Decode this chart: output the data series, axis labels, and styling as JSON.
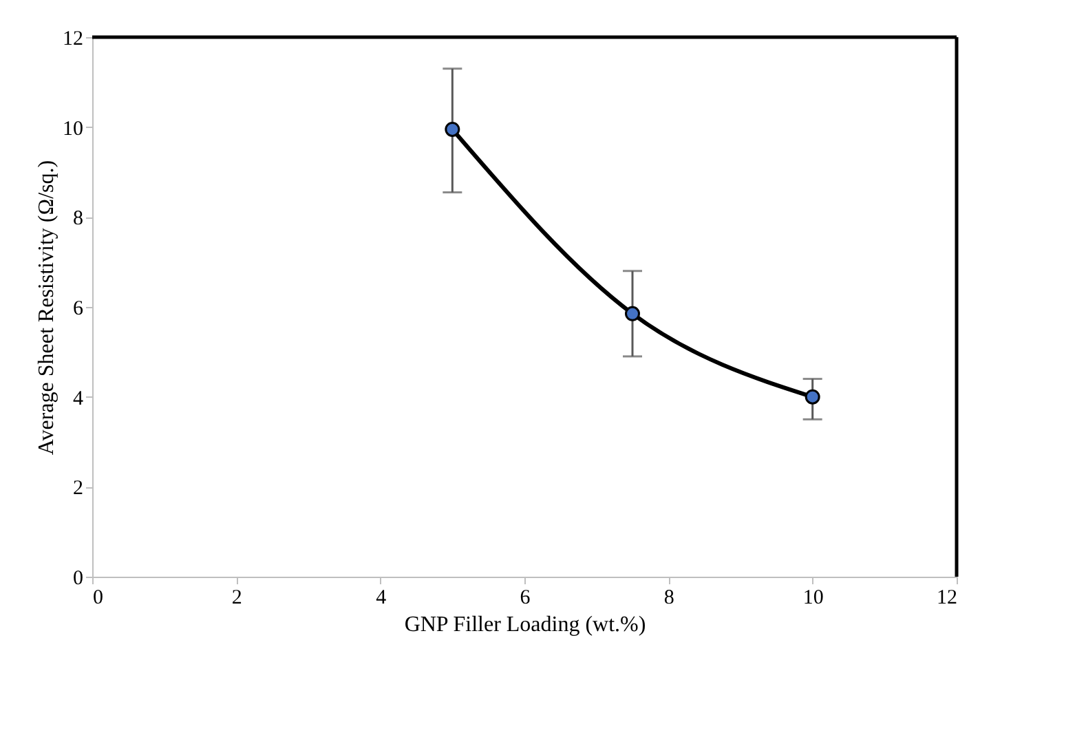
{
  "chart_data": {
    "type": "line",
    "xlabel": "GNP Filler Loading (wt.%)",
    "ylabel": "Average Sheet Resistivity (Ω/sq.)",
    "x": [
      5,
      7.5,
      10
    ],
    "series": [
      {
        "color": "#4472c4",
        "values": [
          9.95,
          5.85,
          4.0
        ],
        "errors": [
          [
            8.55,
            11.3
          ],
          [
            4.9,
            6.8
          ],
          [
            3.5,
            4.4
          ]
        ]
      }
    ],
    "xlim": [
      0,
      12
    ],
    "xticks": [
      0,
      2,
      4,
      6,
      8,
      10,
      12
    ],
    "ylim": [
      0,
      12
    ],
    "yticks": [
      0,
      2,
      4,
      6,
      8,
      10,
      12
    ],
    "grid": false,
    "marker": "circle",
    "line_style": "solid"
  }
}
